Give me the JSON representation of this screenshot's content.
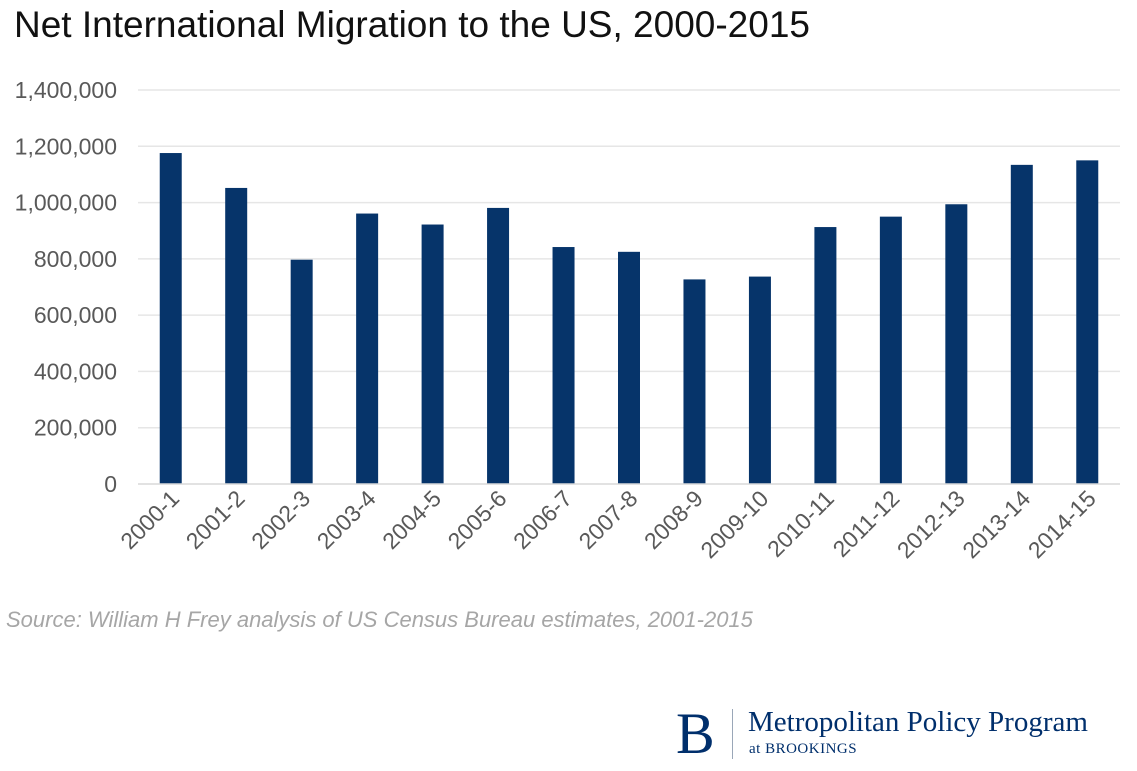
{
  "chart_data": {
    "type": "bar",
    "title": "Net International Migration to the US, 2000-2015",
    "categories": [
      "2000-1",
      "2001-2",
      "2002-3",
      "2003-4",
      "2004-5",
      "2005-6",
      "2006-7",
      "2007-8",
      "2008-9",
      "2009-10",
      "2010-11",
      "2011-12",
      "2012-13",
      "2013-14",
      "2014-15"
    ],
    "values": [
      1176000,
      1052000,
      797000,
      961000,
      922000,
      981000,
      842000,
      825000,
      727000,
      737000,
      913000,
      950000,
      994000,
      1134000,
      1150000
    ],
    "ylim": [
      0,
      1400000
    ],
    "yticks": [
      0,
      200000,
      400000,
      600000,
      800000,
      1000000,
      1200000,
      1400000
    ],
    "ytick_labels": [
      "0",
      "200,000",
      "400,000",
      "600,000",
      "800,000",
      "1,000,000",
      "1,200,000",
      "1,400,000"
    ],
    "xlabel": "",
    "ylabel": "",
    "grid": true,
    "bar_color": "#06346a",
    "grid_color": "#e6e6e6",
    "tick_color": "#595959"
  },
  "source": "Source: William H Frey analysis of US Census Bureau estimates, 2001-2015",
  "logo": {
    "letter": "B",
    "name": "Metropolitan Policy Program",
    "sub": "at BROOKINGS"
  }
}
